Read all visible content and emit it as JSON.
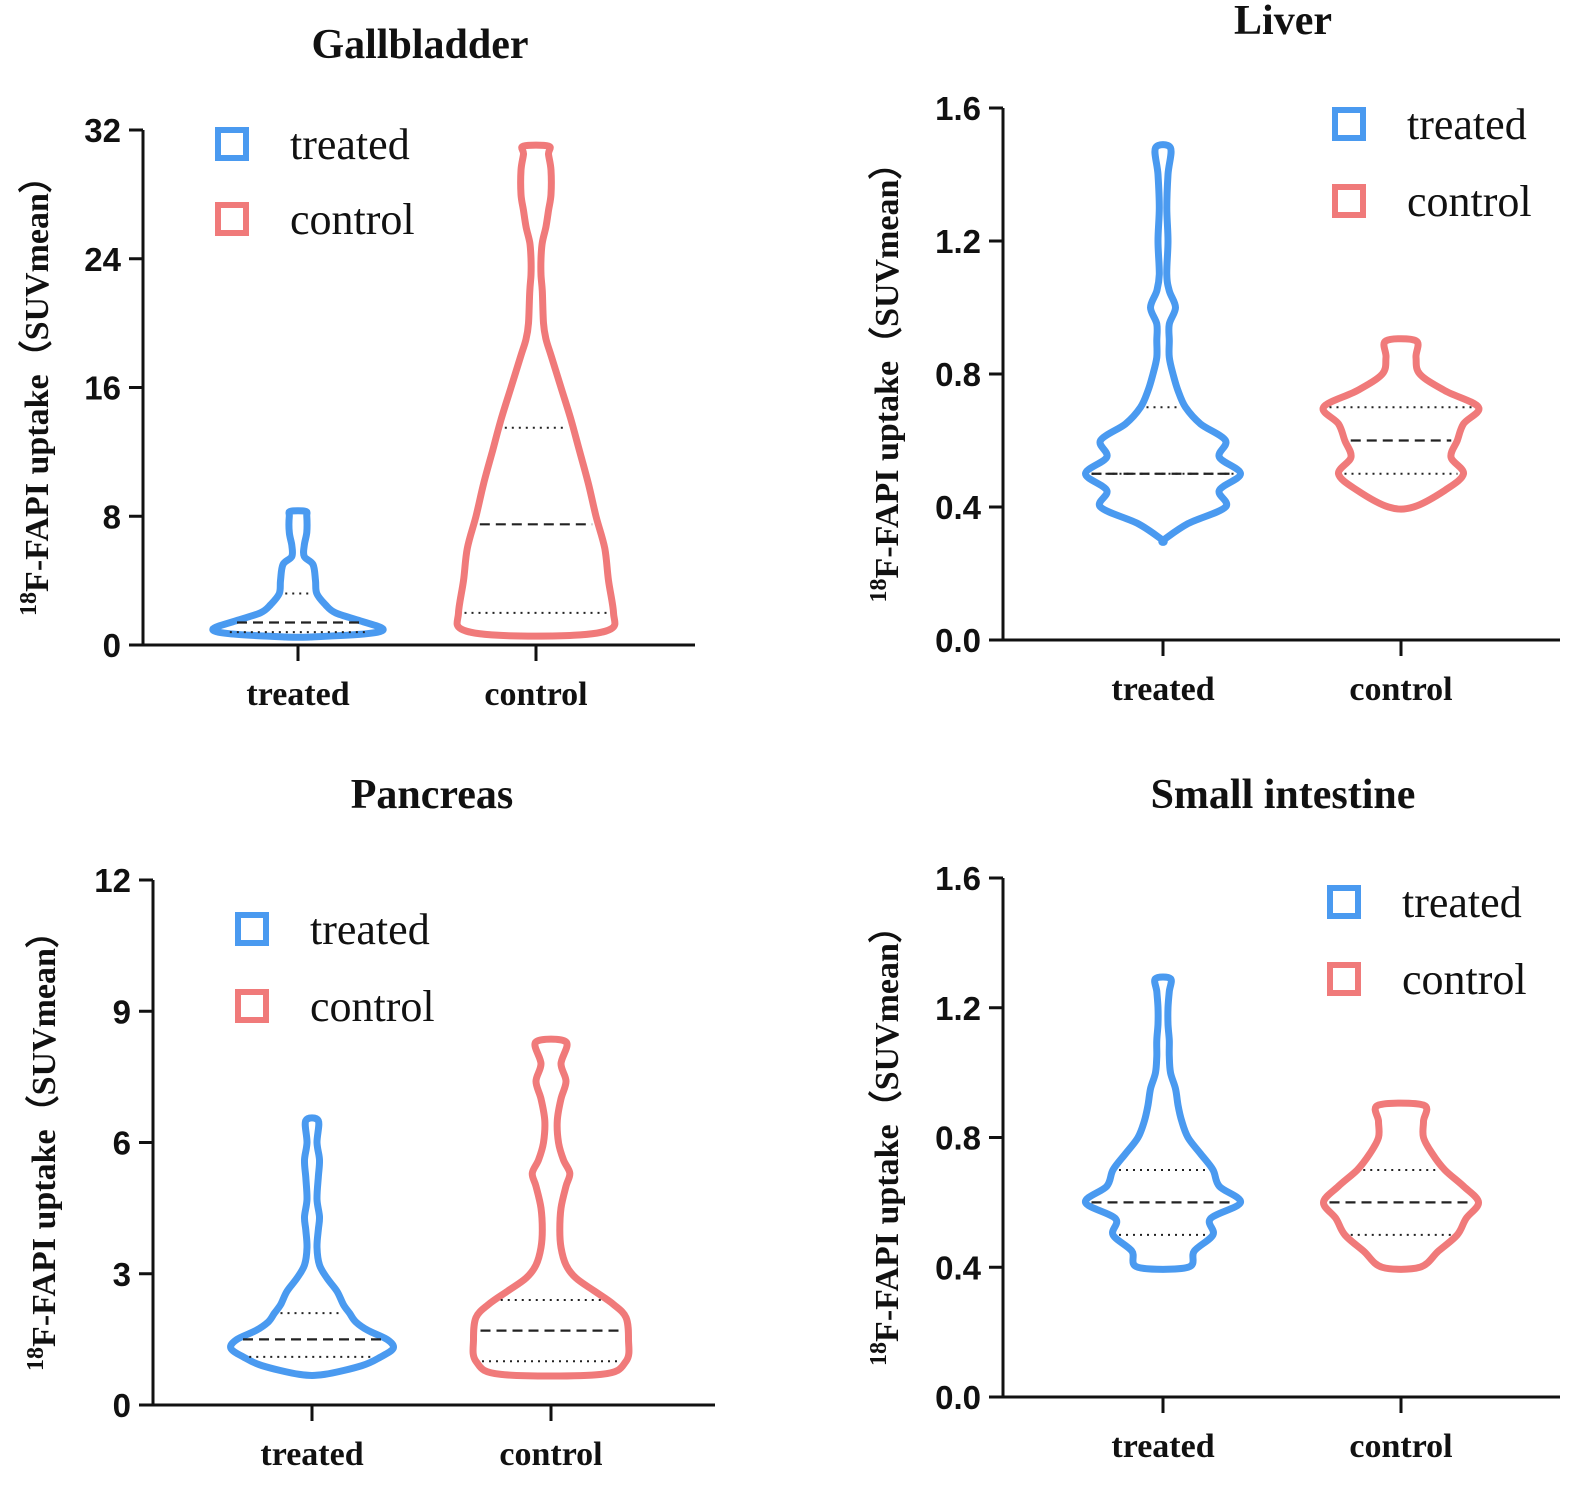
{
  "chart_data": [
    {
      "type": "violin",
      "title": "Gallbladder",
      "ylabel": {
        "sup": "18",
        "text": "F-FAPI uptake（SUVmean）"
      },
      "ylim": [
        0,
        32
      ],
      "yticks": [
        "0",
        "8",
        "16",
        "24",
        "32"
      ],
      "categories": [
        "treated",
        "control"
      ],
      "legend": [
        {
          "label": "treated",
          "color": "#4a9af0"
        },
        {
          "label": "control",
          "color": "#f07a7a"
        }
      ],
      "series": [
        {
          "name": "treated",
          "color": "#4a9af0",
          "profile": [
            [
              0.5,
              0.1
            ],
            [
              0.7,
              0.55
            ],
            [
              1.0,
              0.68
            ],
            [
              1.5,
              0.5
            ],
            [
              2.0,
              0.3
            ],
            [
              2.5,
              0.22
            ],
            [
              3.2,
              0.15
            ],
            [
              4.0,
              0.14
            ],
            [
              5.0,
              0.12
            ],
            [
              5.5,
              0.05
            ],
            [
              6.2,
              0.05
            ],
            [
              7.0,
              0.07
            ],
            [
              8.0,
              0.07
            ],
            [
              8.3,
              0.06
            ]
          ],
          "median": 1.4,
          "q1": 0.8,
          "q3": 3.2
        },
        {
          "name": "control",
          "color": "#f07a7a",
          "profile": [
            [
              0.6,
              0.3
            ],
            [
              1.0,
              0.6
            ],
            [
              2.0,
              0.62
            ],
            [
              4.0,
              0.58
            ],
            [
              6.0,
              0.55
            ],
            [
              8.0,
              0.48
            ],
            [
              10.0,
              0.42
            ],
            [
              12.0,
              0.35
            ],
            [
              14.0,
              0.28
            ],
            [
              16.0,
              0.2
            ],
            [
              18.0,
              0.12
            ],
            [
              19.0,
              0.08
            ],
            [
              20.0,
              0.06
            ],
            [
              22.0,
              0.05
            ],
            [
              23.0,
              0.04
            ],
            [
              24.0,
              0.04
            ],
            [
              25.0,
              0.05
            ],
            [
              26.0,
              0.08
            ],
            [
              27.0,
              0.1
            ],
            [
              28.0,
              0.12
            ],
            [
              29.5,
              0.12
            ],
            [
              30.5,
              0.1
            ],
            [
              31.0,
              0.1
            ]
          ],
          "median": 7.5,
          "q1": 2.0,
          "q3": 13.5
        }
      ]
    },
    {
      "type": "violin",
      "title": "Liver",
      "ylabel": {
        "sup": "18",
        "text": "F-FAPI uptake（SUVmean）"
      },
      "ylim": [
        0,
        1.6
      ],
      "yticks": [
        "0.0",
        "0.4",
        "0.8",
        "1.2",
        "1.6"
      ],
      "categories": [
        "treated",
        "control"
      ],
      "legend": [
        {
          "label": "treated",
          "color": "#4a9af0"
        },
        {
          "label": "control",
          "color": "#f07a7a"
        }
      ],
      "series": [
        {
          "name": "treated",
          "color": "#4a9af0",
          "profile": [
            [
              0.3,
              0.0
            ],
            [
              0.35,
              0.2
            ],
            [
              0.4,
              0.5
            ],
            [
              0.45,
              0.45
            ],
            [
              0.5,
              0.62
            ],
            [
              0.55,
              0.45
            ],
            [
              0.6,
              0.5
            ],
            [
              0.65,
              0.3
            ],
            [
              0.7,
              0.18
            ],
            [
              0.75,
              0.12
            ],
            [
              0.8,
              0.08
            ],
            [
              0.85,
              0.05
            ],
            [
              0.9,
              0.05
            ],
            [
              0.95,
              0.05
            ],
            [
              1.0,
              0.1
            ],
            [
              1.05,
              0.05
            ],
            [
              1.1,
              0.03
            ],
            [
              1.2,
              0.04
            ],
            [
              1.3,
              0.03
            ],
            [
              1.4,
              0.04
            ],
            [
              1.48,
              0.06
            ]
          ],
          "median": 0.5,
          "q1": 0.5,
          "q3": 0.7
        },
        {
          "name": "control",
          "color": "#f07a7a",
          "profile": [
            [
              0.4,
              0.1
            ],
            [
              0.45,
              0.35
            ],
            [
              0.5,
              0.5
            ],
            [
              0.55,
              0.4
            ],
            [
              0.6,
              0.45
            ],
            [
              0.65,
              0.5
            ],
            [
              0.7,
              0.62
            ],
            [
              0.75,
              0.35
            ],
            [
              0.8,
              0.15
            ],
            [
              0.85,
              0.12
            ],
            [
              0.9,
              0.12
            ]
          ],
          "median": 0.6,
          "q1": 0.5,
          "q3": 0.7
        }
      ]
    },
    {
      "type": "violin",
      "title": "Pancreas",
      "ylabel": {
        "sup": "18",
        "text": "F-FAPI uptake（SUVmean）"
      },
      "ylim": [
        0,
        12
      ],
      "yticks": [
        "0",
        "3",
        "6",
        "9",
        "12"
      ],
      "categories": [
        "treated",
        "control"
      ],
      "legend": [
        {
          "label": "treated",
          "color": "#4a9af0"
        },
        {
          "label": "control",
          "color": "#f07a7a"
        }
      ],
      "series": [
        {
          "name": "treated",
          "color": "#4a9af0",
          "profile": [
            [
              0.7,
              0.1
            ],
            [
              0.9,
              0.4
            ],
            [
              1.1,
              0.55
            ],
            [
              1.3,
              0.65
            ],
            [
              1.5,
              0.6
            ],
            [
              1.7,
              0.45
            ],
            [
              1.9,
              0.35
            ],
            [
              2.1,
              0.3
            ],
            [
              2.3,
              0.25
            ],
            [
              2.6,
              0.2
            ],
            [
              2.9,
              0.12
            ],
            [
              3.2,
              0.06
            ],
            [
              3.6,
              0.04
            ],
            [
              4.0,
              0.05
            ],
            [
              4.3,
              0.06
            ],
            [
              4.7,
              0.04
            ],
            [
              5.2,
              0.05
            ],
            [
              5.6,
              0.06
            ],
            [
              6.0,
              0.04
            ],
            [
              6.5,
              0.05
            ]
          ],
          "median": 1.5,
          "q1": 1.1,
          "q3": 2.1
        },
        {
          "name": "control",
          "color": "#f07a7a",
          "profile": [
            [
              0.7,
              0.4
            ],
            [
              1.0,
              0.6
            ],
            [
              1.5,
              0.62
            ],
            [
              2.0,
              0.6
            ],
            [
              2.3,
              0.5
            ],
            [
              2.6,
              0.35
            ],
            [
              2.9,
              0.2
            ],
            [
              3.2,
              0.12
            ],
            [
              3.6,
              0.08
            ],
            [
              4.0,
              0.07
            ],
            [
              4.5,
              0.08
            ],
            [
              5.0,
              0.12
            ],
            [
              5.3,
              0.15
            ],
            [
              5.6,
              0.1
            ],
            [
              6.0,
              0.06
            ],
            [
              6.5,
              0.05
            ],
            [
              7.0,
              0.08
            ],
            [
              7.4,
              0.12
            ],
            [
              7.8,
              0.08
            ],
            [
              8.3,
              0.12
            ]
          ],
          "median": 1.7,
          "q1": 1.0,
          "q3": 2.4
        }
      ]
    },
    {
      "type": "violin",
      "title": "Small intestine",
      "ylabel": {
        "sup": "18",
        "text": "F-FAPI uptake（SUVmean）"
      },
      "ylim": [
        0,
        1.6
      ],
      "yticks": [
        "0.0",
        "0.4",
        "0.8",
        "1.2",
        "1.6"
      ],
      "categories": [
        "treated",
        "control"
      ],
      "legend": [
        {
          "label": "treated",
          "color": "#4a9af0"
        },
        {
          "label": "control",
          "color": "#f07a7a"
        }
      ],
      "series": [
        {
          "name": "treated",
          "color": "#4a9af0",
          "profile": [
            [
              0.4,
              0.2
            ],
            [
              0.45,
              0.25
            ],
            [
              0.5,
              0.4
            ],
            [
              0.55,
              0.38
            ],
            [
              0.6,
              0.62
            ],
            [
              0.65,
              0.45
            ],
            [
              0.7,
              0.4
            ],
            [
              0.75,
              0.3
            ],
            [
              0.8,
              0.2
            ],
            [
              0.85,
              0.15
            ],
            [
              0.9,
              0.12
            ],
            [
              0.95,
              0.1
            ],
            [
              1.0,
              0.06
            ],
            [
              1.05,
              0.05
            ],
            [
              1.1,
              0.05
            ],
            [
              1.15,
              0.04
            ],
            [
              1.2,
              0.04
            ],
            [
              1.25,
              0.05
            ],
            [
              1.29,
              0.06
            ]
          ],
          "median": 0.6,
          "q1": 0.5,
          "q3": 0.7
        },
        {
          "name": "control",
          "color": "#f07a7a",
          "profile": [
            [
              0.4,
              0.15
            ],
            [
              0.45,
              0.3
            ],
            [
              0.5,
              0.45
            ],
            [
              0.55,
              0.52
            ],
            [
              0.6,
              0.62
            ],
            [
              0.65,
              0.5
            ],
            [
              0.7,
              0.35
            ],
            [
              0.75,
              0.25
            ],
            [
              0.8,
              0.18
            ],
            [
              0.85,
              0.18
            ],
            [
              0.9,
              0.18
            ]
          ],
          "median": 0.6,
          "q1": 0.5,
          "q3": 0.7
        }
      ]
    }
  ]
}
